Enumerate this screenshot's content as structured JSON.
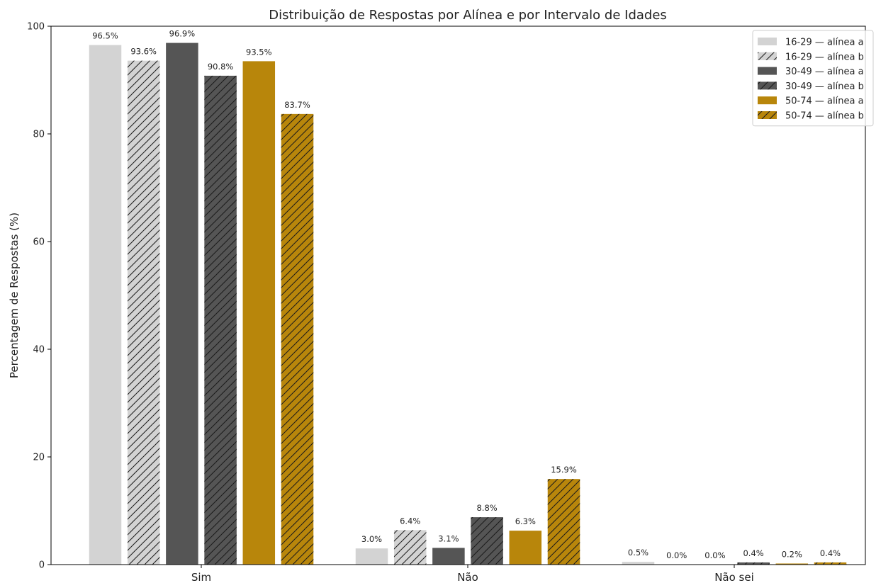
{
  "chart_data": {
    "type": "bar",
    "title": "Distribuição de Respostas por Alínea e por Intervalo de Idades",
    "xlabel": "",
    "ylabel": "Percentagem de Respostas (%)",
    "ylim": [
      0,
      100
    ],
    "yticks": [
      0,
      20,
      40,
      60,
      80,
      100
    ],
    "categories": [
      "Sim",
      "Não",
      "Não sei"
    ],
    "legend_position": "top-right",
    "series": [
      {
        "name": "16-29 — alínea a",
        "color": "#d3d3d3",
        "hatched": false,
        "values": [
          96.5,
          3.0,
          0.5
        ],
        "labels": [
          "96.5%",
          "3.0%",
          "0.5%"
        ]
      },
      {
        "name": "16-29 — alínea b",
        "color": "#d3d3d3",
        "hatched": true,
        "values": [
          93.6,
          6.4,
          0.0
        ],
        "labels": [
          "93.6%",
          "6.4%",
          "0.0%"
        ]
      },
      {
        "name": "30-49 — alínea a",
        "color": "#555555",
        "hatched": false,
        "values": [
          96.9,
          3.1,
          0.0
        ],
        "labels": [
          "96.9%",
          "3.1%",
          "0.0%"
        ]
      },
      {
        "name": "30-49 — alínea b",
        "color": "#555555",
        "hatched": true,
        "values": [
          90.8,
          8.8,
          0.4
        ],
        "labels": [
          "90.8%",
          "8.8%",
          "0.4%"
        ]
      },
      {
        "name": "50-74 — alínea a",
        "color": "#b8860b",
        "hatched": false,
        "values": [
          93.5,
          6.3,
          0.2
        ],
        "labels": [
          "93.5%",
          "6.3%",
          "0.2%"
        ]
      },
      {
        "name": "50-74 — alínea b",
        "color": "#b8860b",
        "hatched": true,
        "values": [
          83.7,
          15.9,
          0.4
        ],
        "labels": [
          "83.7%",
          "15.9%",
          "0.4%"
        ]
      }
    ]
  }
}
